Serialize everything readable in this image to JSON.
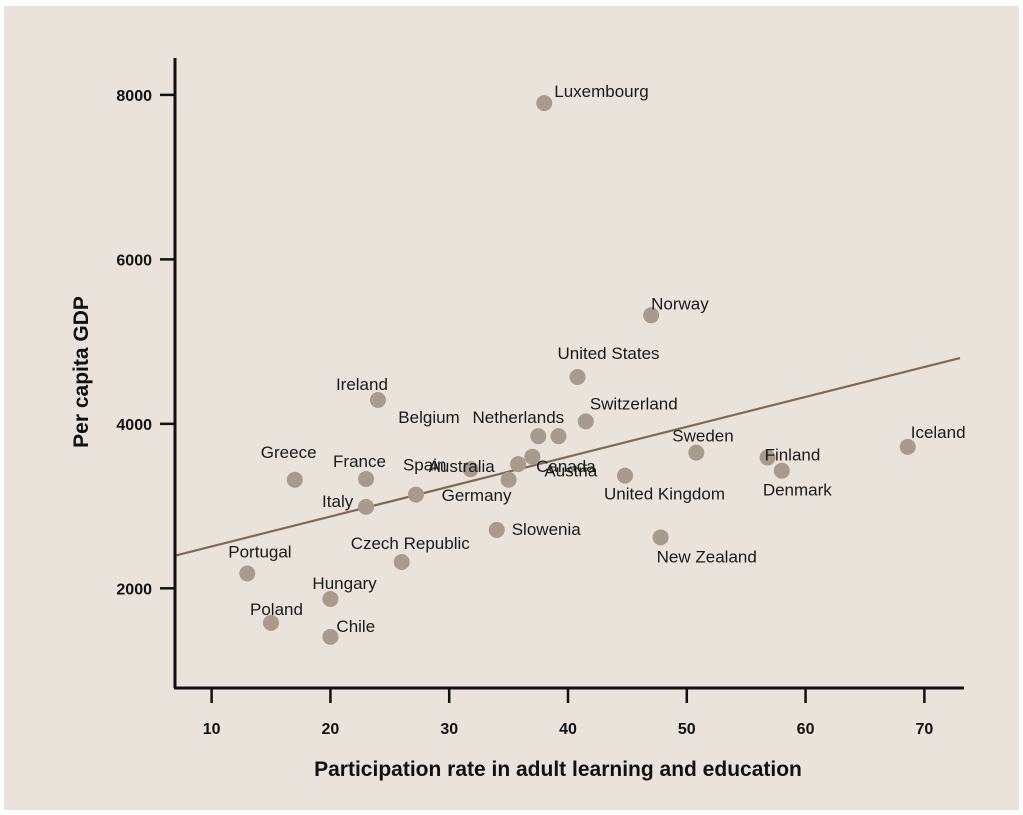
{
  "chart_data": {
    "type": "scatter",
    "title": "",
    "xlabel": "Participation rate in adult learning and education",
    "ylabel": "Per capita GDP",
    "xlim": [
      7,
      73
    ],
    "ylim": [
      800,
      8400
    ],
    "xticks": [
      10,
      20,
      30,
      40,
      50,
      60,
      70
    ],
    "yticks": [
      2000,
      4000,
      6000,
      8000
    ],
    "grid": false,
    "legend": "none",
    "colors": {
      "background": "#e9e3db",
      "point": "#a89a8d",
      "trend": "#7d6a58",
      "axis": "#111111"
    },
    "trendline": {
      "x": [
        7,
        73
      ],
      "y": [
        2400,
        4800
      ]
    },
    "points": [
      {
        "label": "Luxembourg",
        "x": 38,
        "y": 7900
      },
      {
        "label": "Norway",
        "x": 47,
        "y": 5320
      },
      {
        "label": "United States",
        "x": 40.8,
        "y": 4570
      },
      {
        "label": "Ireland",
        "x": 24,
        "y": 4290
      },
      {
        "label": "Switzerland",
        "x": 41.5,
        "y": 4030
      },
      {
        "label": "Belgium",
        "x": 37.5,
        "y": 3850
      },
      {
        "label": "Netherlands",
        "x": 39.2,
        "y": 3850
      },
      {
        "label": "Sweden",
        "x": 50.8,
        "y": 3650
      },
      {
        "label": "Iceland",
        "x": 68.6,
        "y": 3720
      },
      {
        "label": "Finland",
        "x": 56.8,
        "y": 3590
      },
      {
        "label": "Denmark",
        "x": 58,
        "y": 3430
      },
      {
        "label": "Australia",
        "x": 31.8,
        "y": 3450
      },
      {
        "label": "Austria",
        "x": 37,
        "y": 3600
      },
      {
        "label": "Canada",
        "x": 35.8,
        "y": 3510
      },
      {
        "label": "Germany",
        "x": 35,
        "y": 3320
      },
      {
        "label": "United Kingdom",
        "x": 44.8,
        "y": 3370
      },
      {
        "label": "Greece",
        "x": 17,
        "y": 3320
      },
      {
        "label": "France",
        "x": 23,
        "y": 3330
      },
      {
        "label": "Spain",
        "x": 27.2,
        "y": 3140
      },
      {
        "label": "Italy",
        "x": 23,
        "y": 2990
      },
      {
        "label": "Slowenia",
        "x": 34,
        "y": 2710
      },
      {
        "label": "New Zealand",
        "x": 47.8,
        "y": 2620
      },
      {
        "label": "Czech Republic",
        "x": 26,
        "y": 2320
      },
      {
        "label": "Portugal",
        "x": 13,
        "y": 2180
      },
      {
        "label": "Hungary",
        "x": 20,
        "y": 1870
      },
      {
        "label": "Poland",
        "x": 15,
        "y": 1580
      },
      {
        "label": "Chile",
        "x": 20,
        "y": 1410
      }
    ]
  }
}
